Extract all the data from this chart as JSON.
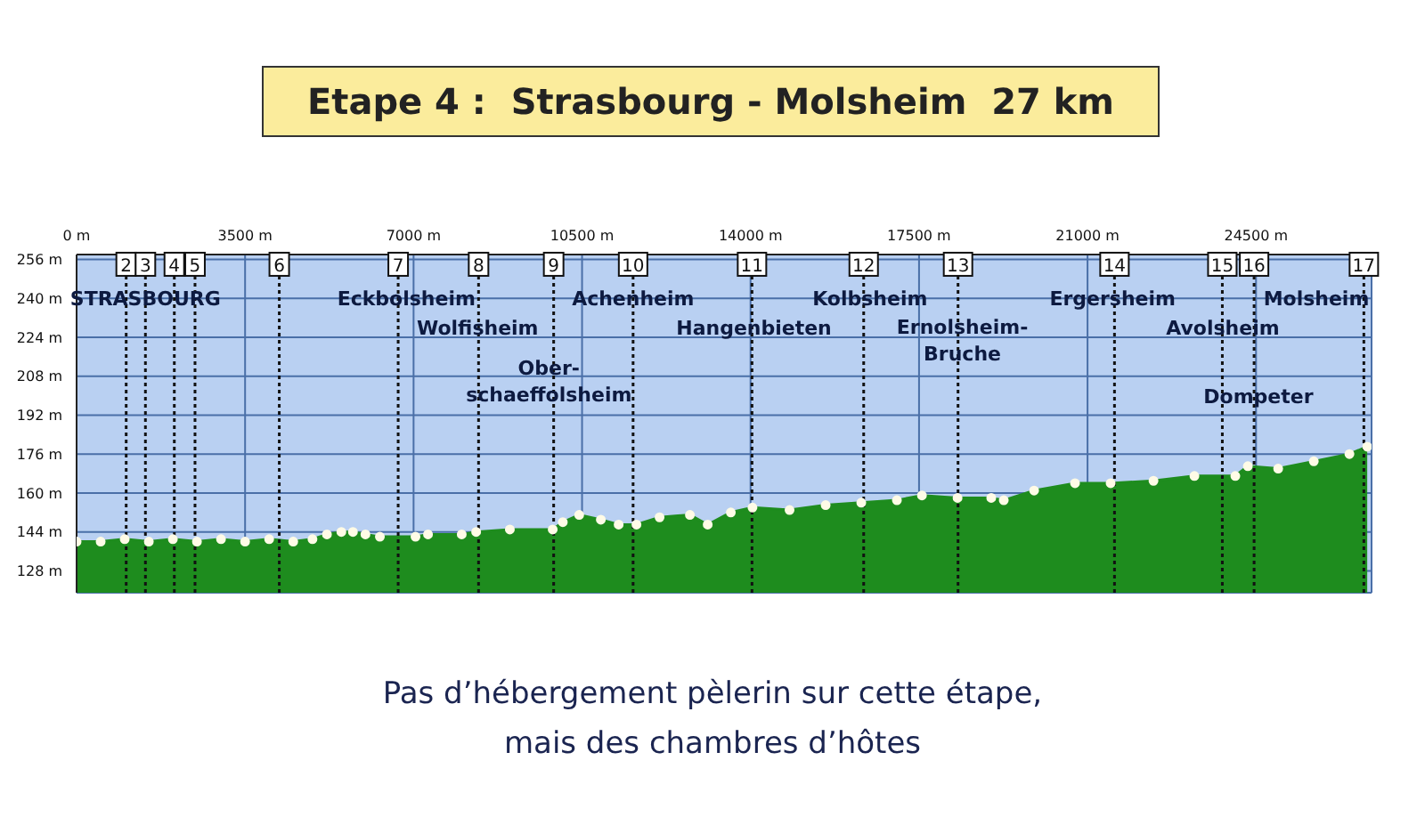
{
  "chart_data": {
    "type": "area",
    "title": "Etape 4 :  Strasbourg - Molsheim  27 km",
    "x": [
      0,
      500,
      1000,
      1500,
      2000,
      2500,
      3000,
      3500,
      4000,
      4500,
      4900,
      5200,
      5500,
      5740,
      6000,
      6300,
      7040,
      7300,
      8000,
      8300,
      9000,
      9890,
      10100,
      10440,
      10890,
      11260,
      11630,
      12110,
      12740,
      13110,
      13590,
      14040,
      14810,
      15560,
      16300,
      17040,
      17560,
      18300,
      19000,
      19260,
      19890,
      20740,
      21480,
      22370,
      23220,
      24070,
      24330,
      24960,
      25700,
      26440,
      26810
    ],
    "series": [
      {
        "color": "#1e8c1e",
        "values": [
          140,
          140,
          141,
          140,
          141,
          140,
          141,
          140,
          141,
          140,
          141,
          143,
          144,
          144,
          143,
          142,
          142,
          143,
          143,
          144,
          145,
          145,
          148,
          151,
          149,
          147,
          147,
          150,
          151,
          147,
          152,
          154,
          153,
          155,
          156,
          157,
          159,
          158,
          158,
          157,
          161,
          164,
          164,
          165,
          167,
          167,
          171,
          170,
          173,
          176,
          179
        ]
      }
    ],
    "xlim": [
      0,
      26900
    ],
    "xticks": [
      {
        "value": 0,
        "label": "0 m"
      },
      {
        "value": 3500,
        "label": "3500 m"
      },
      {
        "value": 7000,
        "label": "7000 m"
      },
      {
        "value": 10500,
        "label": "10500 m"
      },
      {
        "value": 14000,
        "label": "14000 m"
      },
      {
        "value": 17500,
        "label": "17500 m"
      },
      {
        "value": 21000,
        "label": "21000 m"
      },
      {
        "value": 24500,
        "label": "24500 m"
      }
    ],
    "ylim": [
      119,
      258
    ],
    "yticks": [
      {
        "value": 128,
        "label": "128 m"
      },
      {
        "value": 144,
        "label": "144 m"
      },
      {
        "value": 160,
        "label": "160 m"
      },
      {
        "value": 176,
        "label": "176 m"
      },
      {
        "value": 192,
        "label": "192 m"
      },
      {
        "value": 208,
        "label": "208 m"
      },
      {
        "value": 224,
        "label": "224 m"
      },
      {
        "value": 240,
        "label": "240 m"
      },
      {
        "value": 256,
        "label": "256 m"
      }
    ],
    "grid": true,
    "marker": "circle",
    "ref_lines": [
      {
        "axis": "x",
        "value": 1030,
        "line_style": "dotted"
      },
      {
        "axis": "x",
        "value": 1430,
        "line_style": "dotted"
      },
      {
        "axis": "x",
        "value": 2030,
        "line_style": "dotted"
      },
      {
        "axis": "x",
        "value": 2460,
        "line_style": "dotted"
      },
      {
        "axis": "x",
        "value": 4210,
        "line_style": "dotted"
      },
      {
        "axis": "x",
        "value": 6680,
        "line_style": "dotted"
      },
      {
        "axis": "x",
        "value": 8350,
        "line_style": "dotted"
      },
      {
        "axis": "x",
        "value": 9910,
        "line_style": "dotted"
      },
      {
        "axis": "x",
        "value": 11560,
        "line_style": "dotted"
      },
      {
        "axis": "x",
        "value": 14030,
        "line_style": "dotted"
      },
      {
        "axis": "x",
        "value": 16350,
        "line_style": "dotted"
      },
      {
        "axis": "x",
        "value": 18310,
        "line_style": "dotted"
      },
      {
        "axis": "x",
        "value": 21560,
        "line_style": "dotted"
      },
      {
        "axis": "x",
        "value": 23800,
        "line_style": "dotted"
      },
      {
        "axis": "x",
        "value": 24460,
        "line_style": "dotted"
      },
      {
        "axis": "x",
        "value": 26740,
        "line_style": "dotted"
      }
    ],
    "annotations": [
      {
        "text": "2",
        "x": 1030,
        "y": 254
      },
      {
        "text": "3",
        "x": 1430,
        "y": 254
      },
      {
        "text": "4",
        "x": 2030,
        "y": 254
      },
      {
        "text": "5",
        "x": 2460,
        "y": 254
      },
      {
        "text": "6",
        "x": 4210,
        "y": 254
      },
      {
        "text": "7",
        "x": 6680,
        "y": 254
      },
      {
        "text": "8",
        "x": 8350,
        "y": 254
      },
      {
        "text": "9",
        "x": 9910,
        "y": 254
      },
      {
        "text": "10",
        "x": 11560,
        "y": 254
      },
      {
        "text": "11",
        "x": 14030,
        "y": 254
      },
      {
        "text": "12",
        "x": 16350,
        "y": 254
      },
      {
        "text": "13",
        "x": 18310,
        "y": 254
      },
      {
        "text": "14",
        "x": 21560,
        "y": 254
      },
      {
        "text": "15",
        "x": 23800,
        "y": 254
      },
      {
        "text": "16",
        "x": 24460,
        "y": 254
      },
      {
        "text": "17",
        "x": 26740,
        "y": 254
      },
      {
        "text": "STRASBOURG",
        "x": 1430,
        "y": 240
      },
      {
        "text": "Eckbolsheim",
        "x": 6850,
        "y": 240
      },
      {
        "text": "Wolfisheim",
        "x": 8330,
        "y": 228
      },
      {
        "text": "Ober-\nschaeffolsheim",
        "x": 9810,
        "y": 206
      },
      {
        "text": "Achenheim",
        "x": 11560,
        "y": 240
      },
      {
        "text": "Hangenbieten",
        "x": 14070,
        "y": 228
      },
      {
        "text": "Kolbsheim",
        "x": 16480,
        "y": 240
      },
      {
        "text": "Ernolsheim-\nBruche",
        "x": 18400,
        "y": 223
      },
      {
        "text": "Ergersheim",
        "x": 21520,
        "y": 240
      },
      {
        "text": "Avolsheim",
        "x": 23810,
        "y": 228
      },
      {
        "text": "Dompeter",
        "x": 24550,
        "y": 200
      },
      {
        "text": "Molsheim",
        "x": 26740,
        "y": 240
      },
      "Pas d’hébergement pèlerin sur cette étape,\nmais des chambres d’hôtes"
    ]
  }
}
